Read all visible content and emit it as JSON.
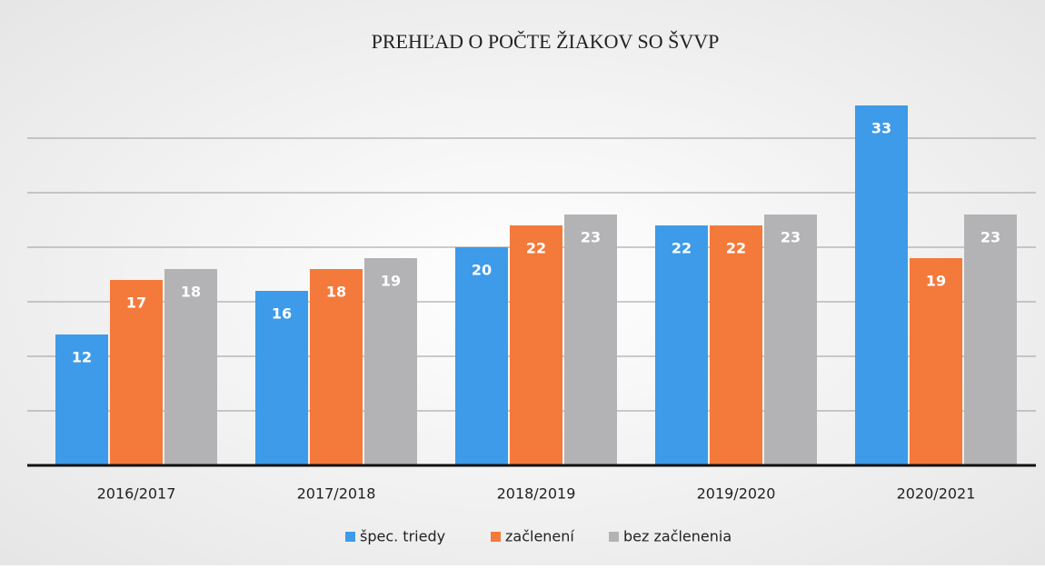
{
  "chart_data": {
    "type": "bar",
    "title": "PREHĽAD O POČTE ŽIAKOV SO ŠVVP",
    "categories": [
      "2016/2017",
      "2017/2018",
      "2018/2019",
      "2019/2020",
      "2020/2021"
    ],
    "series": [
      {
        "name": "špec. triedy",
        "color": "#3d9be9",
        "values": [
          12,
          16,
          20,
          22,
          33
        ]
      },
      {
        "name": "začlenení",
        "color": "#f47a3c",
        "values": [
          17,
          18,
          22,
          22,
          19
        ]
      },
      {
        "name": "bez začlenenia",
        "color": "#b3b3b5",
        "values": [
          18,
          19,
          23,
          23,
          23
        ]
      }
    ],
    "ylim": [
      0,
      35
    ],
    "yticks": [
      0,
      5,
      10,
      15,
      20,
      25,
      30
    ],
    "ytick_labels": false,
    "grid": true,
    "legend": "bottom"
  }
}
